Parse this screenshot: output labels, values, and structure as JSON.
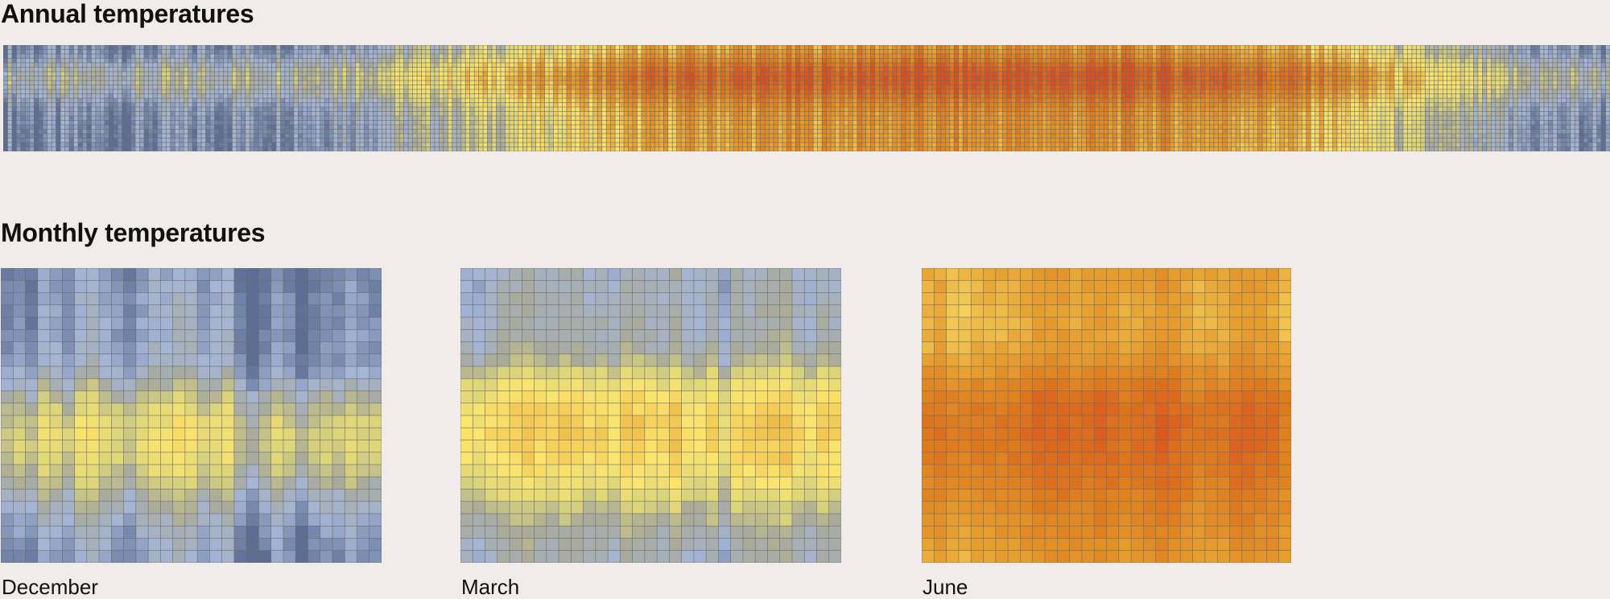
{
  "annual_title": "Annual temperatures",
  "monthly_title": "Monthly temperatures",
  "palette": {
    "background": "#f1ecea",
    "cold_dark": "#5c6e94",
    "cold": "#a4b5d6",
    "cool": "#a9aa9a",
    "mild": "#d9d37c",
    "warm": "#fbe56e",
    "hot": "#e6a02f",
    "hotter": "#dd7a1e",
    "hottest": "#d9501f",
    "grid": "#6b6b6b"
  },
  "chart_data": [
    {
      "type": "heatmap",
      "name": "annual",
      "title": "Annual temperatures",
      "legend": "none",
      "grid": true,
      "columns": 365,
      "rows": 24,
      "value_scale": "relative temperature 0–1 (cold blue → hot red)",
      "column_profile": [
        0.16,
        0.15,
        0.18,
        0.22,
        0.3,
        0.45,
        0.62,
        0.78,
        0.82,
        0.84,
        0.86,
        0.86,
        0.85,
        0.82,
        0.7,
        0.42,
        0.22,
        0.16
      ],
      "row_profile_offsets": [
        -0.14,
        -0.12,
        -0.08,
        -0.02,
        0.05,
        0.1,
        0.13,
        0.14,
        0.13,
        0.1,
        0.06,
        0.02,
        -0.03,
        -0.07,
        -0.1,
        -0.12,
        -0.13,
        -0.14,
        -0.15,
        -0.15,
        -0.15,
        -0.15,
        -0.16,
        -0.16
      ]
    },
    {
      "type": "heatmap",
      "name": "December",
      "title": "December",
      "legend": "none",
      "grid": true,
      "columns": 31,
      "rows": 24,
      "daily_levels": [
        0.14,
        0.17,
        0.12,
        0.24,
        0.21,
        0.15,
        0.26,
        0.28,
        0.22,
        0.18,
        0.14,
        0.21,
        0.26,
        0.24,
        0.29,
        0.27,
        0.19,
        0.23,
        0.26,
        0.12,
        0.05,
        0.12,
        0.2,
        0.16,
        0.07,
        0.13,
        0.17,
        0.15,
        0.21,
        0.18,
        0.16
      ],
      "hourly_offsets": [
        -0.1,
        -0.1,
        -0.09,
        -0.09,
        -0.08,
        -0.08,
        -0.07,
        -0.06,
        -0.02,
        0.04,
        0.1,
        0.16,
        0.2,
        0.22,
        0.22,
        0.2,
        0.16,
        0.11,
        0.06,
        0.02,
        -0.02,
        -0.05,
        -0.07,
        -0.09
      ]
    },
    {
      "type": "heatmap",
      "name": "March",
      "title": "March",
      "legend": "none",
      "grid": true,
      "columns": 31,
      "rows": 24,
      "daily_levels": [
        0.3,
        0.28,
        0.33,
        0.35,
        0.37,
        0.38,
        0.36,
        0.34,
        0.37,
        0.36,
        0.33,
        0.35,
        0.31,
        0.38,
        0.37,
        0.34,
        0.33,
        0.39,
        0.31,
        0.3,
        0.36,
        0.25,
        0.36,
        0.35,
        0.37,
        0.38,
        0.4,
        0.33,
        0.3,
        0.36,
        0.34
      ],
      "hourly_offsets": [
        -0.14,
        -0.14,
        -0.13,
        -0.12,
        -0.12,
        -0.11,
        -0.09,
        -0.05,
        0.03,
        0.1,
        0.15,
        0.18,
        0.2,
        0.2,
        0.19,
        0.17,
        0.14,
        0.1,
        0.05,
        0.0,
        -0.04,
        -0.08,
        -0.1,
        -0.12
      ]
    },
    {
      "type": "heatmap",
      "name": "June",
      "title": "June",
      "legend": "none",
      "grid": true,
      "columns": 30,
      "rows": 24,
      "daily_levels": [
        0.72,
        0.75,
        0.7,
        0.69,
        0.72,
        0.72,
        0.73,
        0.74,
        0.76,
        0.8,
        0.79,
        0.8,
        0.77,
        0.78,
        0.8,
        0.78,
        0.75,
        0.77,
        0.79,
        0.82,
        0.8,
        0.76,
        0.72,
        0.75,
        0.74,
        0.79,
        0.8,
        0.78,
        0.77,
        0.72
      ],
      "hourly_offsets": [
        -0.08,
        -0.09,
        -0.1,
        -0.11,
        -0.11,
        -0.1,
        -0.08,
        -0.05,
        0.0,
        0.05,
        0.09,
        0.11,
        0.12,
        0.12,
        0.11,
        0.1,
        0.09,
        0.07,
        0.05,
        0.03,
        0.01,
        -0.01,
        -0.03,
        -0.05
      ]
    }
  ],
  "panels": [
    {
      "label": "December"
    },
    {
      "label": "March"
    },
    {
      "label": "June"
    }
  ]
}
